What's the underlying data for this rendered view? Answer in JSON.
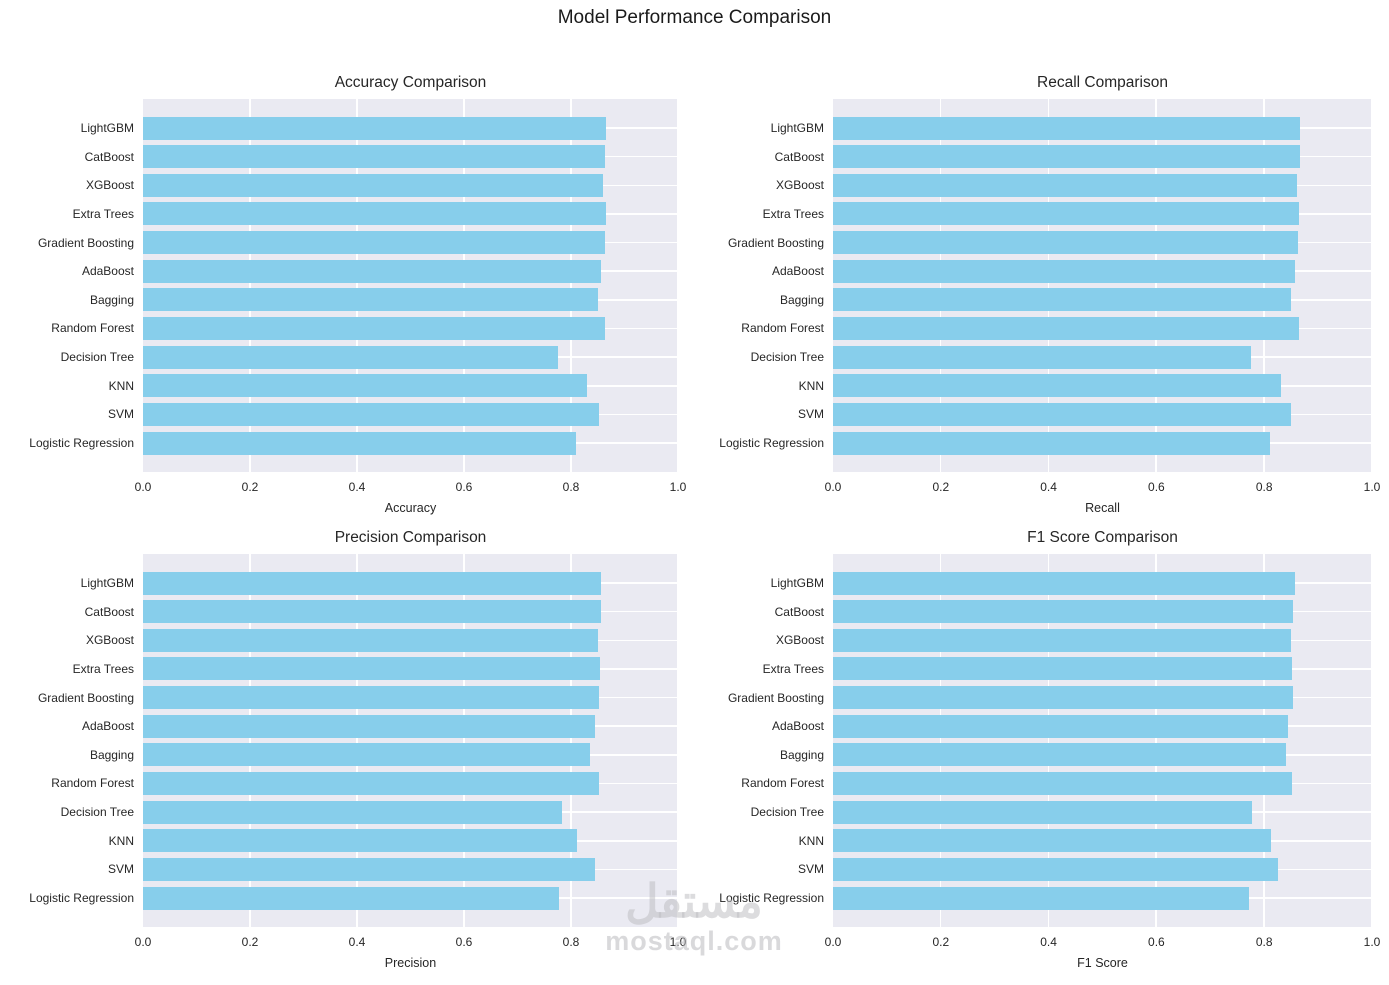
{
  "figure": {
    "title": "Model Performance Comparison"
  },
  "colors": {
    "bar": "#87CEEB",
    "plot_background": "#EAEAF2",
    "gridline": "#FFFFFF",
    "text": "#262626"
  },
  "watermark": {
    "text_arabic": "مستقل",
    "text_latin": "mostaql.com"
  },
  "chart_data": [
    {
      "type": "bar",
      "orientation": "horizontal",
      "title": "Accuracy Comparison",
      "xlabel": "Accuracy",
      "xlim": [
        0.0,
        1.0
      ],
      "xticks": [
        "0.0",
        "0.2",
        "0.4",
        "0.6",
        "0.8",
        "1.0"
      ],
      "grid": true,
      "categories": [
        "LightGBM",
        "CatBoost",
        "XGBoost",
        "Extra Trees",
        "Gradient Boosting",
        "AdaBoost",
        "Bagging",
        "Random Forest",
        "Decision Tree",
        "KNN",
        "SVM",
        "Logistic Regression"
      ],
      "values": [
        0.866,
        0.864,
        0.859,
        0.865,
        0.864,
        0.856,
        0.851,
        0.864,
        0.776,
        0.829,
        0.852,
        0.809
      ]
    },
    {
      "type": "bar",
      "orientation": "horizontal",
      "title": "Recall Comparison",
      "xlabel": "Recall",
      "xlim": [
        0.0,
        1.0
      ],
      "xticks": [
        "0.0",
        "0.2",
        "0.4",
        "0.6",
        "0.8",
        "1.0"
      ],
      "grid": true,
      "categories": [
        "LightGBM",
        "CatBoost",
        "XGBoost",
        "Extra Trees",
        "Gradient Boosting",
        "AdaBoost",
        "Bagging",
        "Random Forest",
        "Decision Tree",
        "KNN",
        "SVM",
        "Logistic Regression"
      ],
      "values": [
        0.866,
        0.866,
        0.86,
        0.865,
        0.863,
        0.857,
        0.849,
        0.864,
        0.776,
        0.831,
        0.85,
        0.81
      ]
    },
    {
      "type": "bar",
      "orientation": "horizontal",
      "title": "Precision Comparison",
      "xlabel": "Precision",
      "xlim": [
        0.0,
        1.0
      ],
      "xticks": [
        "0.0",
        "0.2",
        "0.4",
        "0.6",
        "0.8",
        "1.0"
      ],
      "grid": true,
      "categories": [
        "LightGBM",
        "CatBoost",
        "XGBoost",
        "Extra Trees",
        "Gradient Boosting",
        "AdaBoost",
        "Bagging",
        "Random Forest",
        "Decision Tree",
        "KNN",
        "SVM",
        "Logistic Regression"
      ],
      "values": [
        0.857,
        0.856,
        0.85,
        0.855,
        0.853,
        0.845,
        0.836,
        0.853,
        0.784,
        0.811,
        0.844,
        0.778
      ]
    },
    {
      "type": "bar",
      "orientation": "horizontal",
      "title": "F1 Score Comparison",
      "xlabel": "F1 Score",
      "xlim": [
        0.0,
        1.0
      ],
      "xticks": [
        "0.0",
        "0.2",
        "0.4",
        "0.6",
        "0.8",
        "1.0"
      ],
      "grid": true,
      "categories": [
        "LightGBM",
        "CatBoost",
        "XGBoost",
        "Extra Trees",
        "Gradient Boosting",
        "AdaBoost",
        "Bagging",
        "Random Forest",
        "Decision Tree",
        "KNN",
        "SVM",
        "Logistic Regression"
      ],
      "values": [
        0.857,
        0.854,
        0.85,
        0.851,
        0.853,
        0.844,
        0.84,
        0.851,
        0.778,
        0.812,
        0.826,
        0.771
      ]
    }
  ]
}
